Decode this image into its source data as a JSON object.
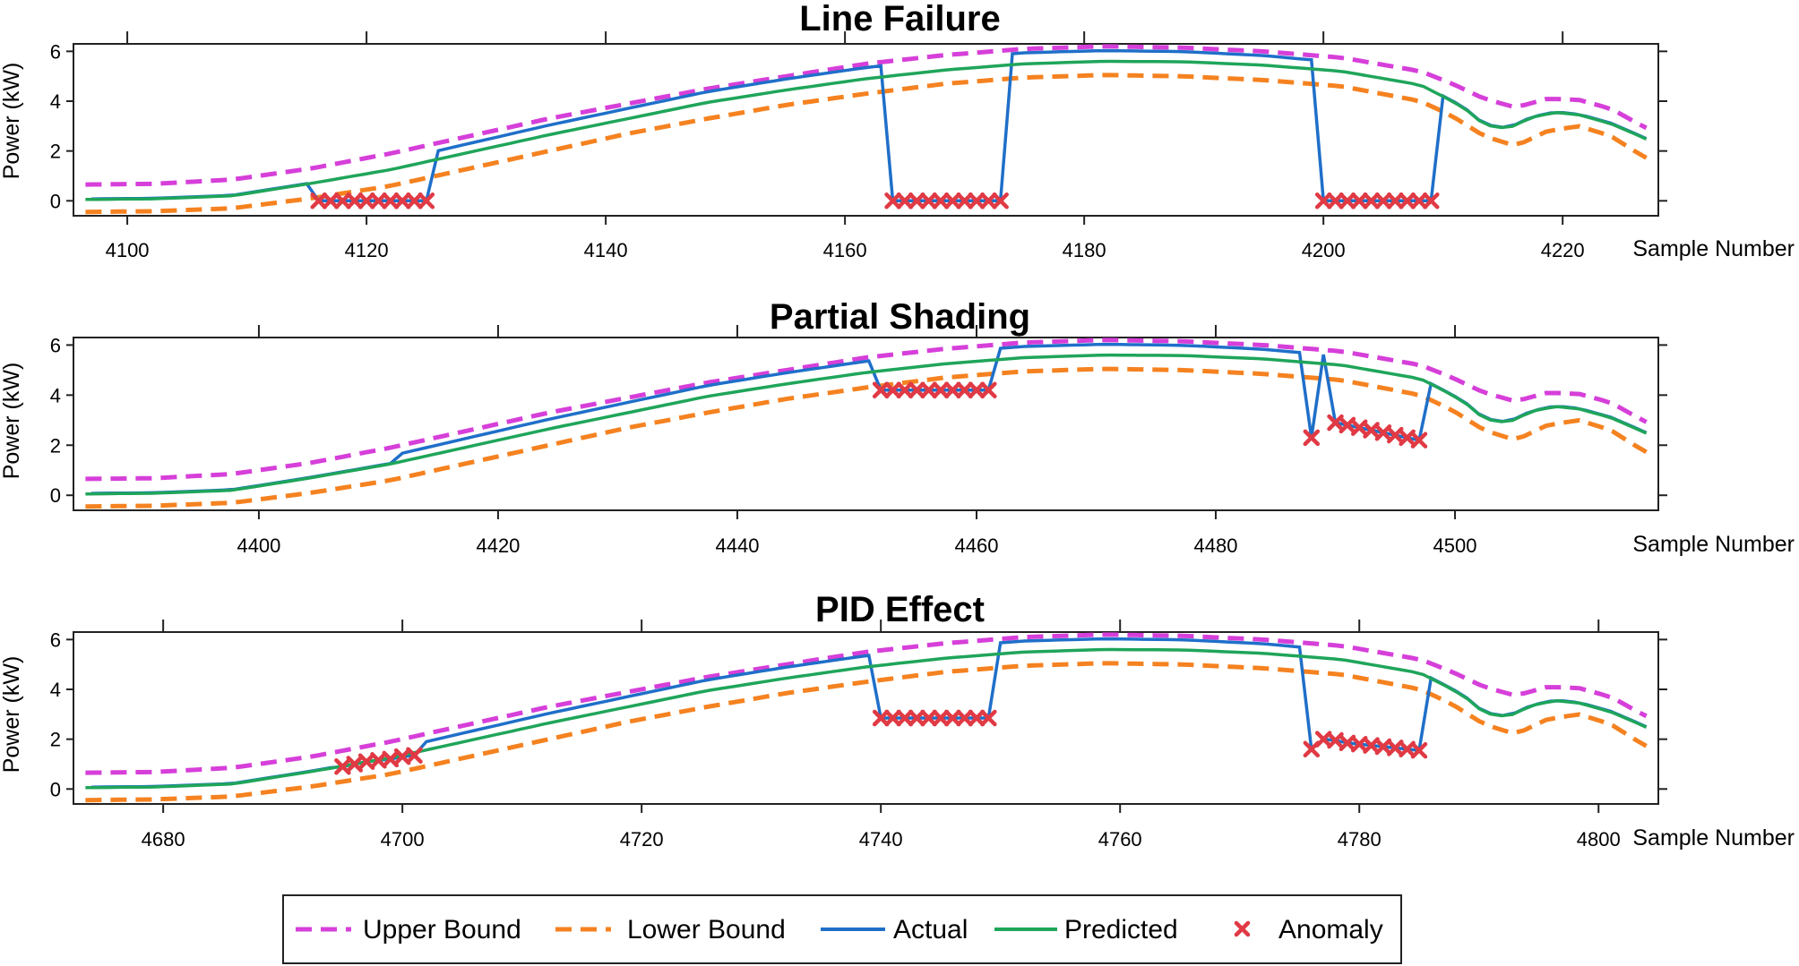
{
  "chart_data": [
    {
      "type": "line",
      "title": "Line Failure",
      "xlabel": "Sample Number",
      "ylabel": "Power (kW)",
      "xlim": [
        4095.5,
        4228
      ],
      "ylim": [
        -0.6,
        6.3
      ],
      "xticks": [
        4100,
        4120,
        4140,
        4160,
        4180,
        4200,
        4220
      ],
      "yticks": [
        0,
        2,
        4,
        6
      ],
      "anomalies": {
        "x": [
          4116,
          4117,
          4118,
          4119,
          4120,
          4121,
          4122,
          4123,
          4124,
          4125,
          4164,
          4165,
          4166,
          4167,
          4168,
          4169,
          4170,
          4171,
          4172,
          4173,
          4200,
          4201,
          4202,
          4203,
          4204,
          4205,
          4206,
          4207,
          4208,
          4209
        ],
        "y": [
          0,
          0,
          0,
          0,
          0,
          0,
          0,
          0,
          0,
          0,
          0,
          0,
          0,
          0,
          0,
          0,
          0,
          0,
          0,
          0,
          0,
          0,
          0,
          0,
          0,
          0,
          0,
          0,
          0,
          0
        ]
      },
      "actual_dropouts": [
        [
          4116,
          4125
        ],
        [
          4164,
          4173
        ],
        [
          4200,
          4209
        ]
      ]
    },
    {
      "type": "line",
      "title": "Partial Shading",
      "xlabel": "Sample Number",
      "ylabel": "Power (kW)",
      "xlim": [
        4384.5,
        4517
      ],
      "ylim": [
        -0.6,
        6.3
      ],
      "xticks": [
        4400,
        4420,
        4440,
        4460,
        4480,
        4500
      ],
      "yticks": [
        0,
        2,
        4,
        6
      ],
      "anomalies": {
        "x": [
          4452,
          4453,
          4454,
          4455,
          4456,
          4457,
          4458,
          4459,
          4460,
          4461,
          4488,
          4490,
          4491,
          4492,
          4493,
          4494,
          4495,
          4496,
          4497
        ],
        "y": [
          4.2,
          4.2,
          4.2,
          4.2,
          4.2,
          4.2,
          4.2,
          4.2,
          4.2,
          4.2,
          2.3,
          2.9,
          2.8,
          2.7,
          2.6,
          2.5,
          2.4,
          2.3,
          2.2
        ]
      },
      "actual_dropouts": []
    },
    {
      "type": "line",
      "title": "PID Effect",
      "xlabel": "Sample Number",
      "ylabel": "Power (kW)",
      "xlim": [
        4672.5,
        4805
      ],
      "ylim": [
        -0.6,
        6.3
      ],
      "xticks": [
        4680,
        4700,
        4720,
        4740,
        4760,
        4780,
        4800
      ],
      "yticks": [
        0,
        2,
        4,
        6
      ],
      "anomalies": {
        "x": [
          4695,
          4696,
          4697,
          4698,
          4699,
          4700,
          4701,
          4740,
          4741,
          4742,
          4743,
          4744,
          4745,
          4746,
          4747,
          4748,
          4749,
          4776,
          4777,
          4778,
          4779,
          4780,
          4781,
          4782,
          4783,
          4784,
          4785
        ],
        "y": [
          0.9,
          1.0,
          1.1,
          1.15,
          1.2,
          1.3,
          1.35,
          2.85,
          2.85,
          2.85,
          2.85,
          2.85,
          2.85,
          2.85,
          2.85,
          2.85,
          2.85,
          1.6,
          2.0,
          1.95,
          1.85,
          1.8,
          1.75,
          1.7,
          1.65,
          1.6,
          1.55
        ],
        "note": ""
      },
      "actual_dropouts": []
    }
  ],
  "legend": {
    "placement": "bottom-center",
    "items": [
      {
        "label": "Upper Bound",
        "style": "dashed",
        "color": "#D63FD9"
      },
      {
        "label": "Lower Bound",
        "style": "dashed",
        "color": "#F58220"
      },
      {
        "label": "Actual",
        "style": "solid",
        "color": "#1F6FC9"
      },
      {
        "label": "Predicted",
        "style": "solid",
        "color": "#1FA55A"
      },
      {
        "label": "Anomaly",
        "style": "cross",
        "color": "#E03A45"
      }
    ]
  }
}
